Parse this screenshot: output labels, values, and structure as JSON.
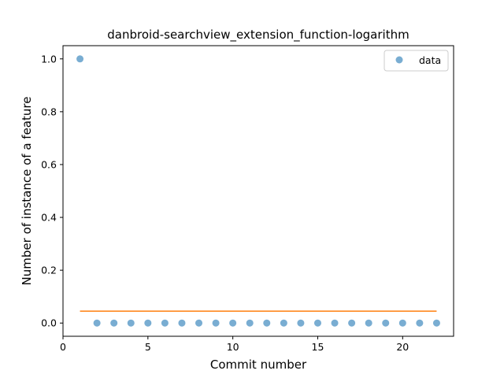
{
  "chart_data": {
    "type": "scatter",
    "title": "danbroid-searchview_extension_function-logarithm",
    "xlabel": "Commit number",
    "ylabel": "Number of instance of a feature",
    "xlim": [
      0,
      23
    ],
    "ylim": [
      -0.05,
      1.05
    ],
    "xticks": [
      0,
      5,
      10,
      15,
      20
    ],
    "yticks": [
      0.0,
      0.2,
      0.4,
      0.6,
      0.8,
      1.0
    ],
    "ytick_labels": [
      "0.0",
      "0.2",
      "0.4",
      "0.6",
      "0.8",
      "1.0"
    ],
    "grid": false,
    "legend_position": "top-right",
    "series": [
      {
        "name": "data",
        "kind": "scatter",
        "color": "#1f77b4",
        "x": [
          1,
          2,
          3,
          4,
          5,
          6,
          7,
          8,
          9,
          10,
          11,
          12,
          13,
          14,
          15,
          16,
          17,
          18,
          19,
          20,
          21,
          22
        ],
        "y": [
          1,
          0,
          0,
          0,
          0,
          0,
          0,
          0,
          0,
          0,
          0,
          0,
          0,
          0,
          0,
          0,
          0,
          0,
          0,
          0,
          0,
          0
        ]
      },
      {
        "kind": "line",
        "color": "#ff7f0e",
        "x": [
          1,
          22
        ],
        "y": [
          0.045,
          0.045
        ]
      }
    ]
  }
}
